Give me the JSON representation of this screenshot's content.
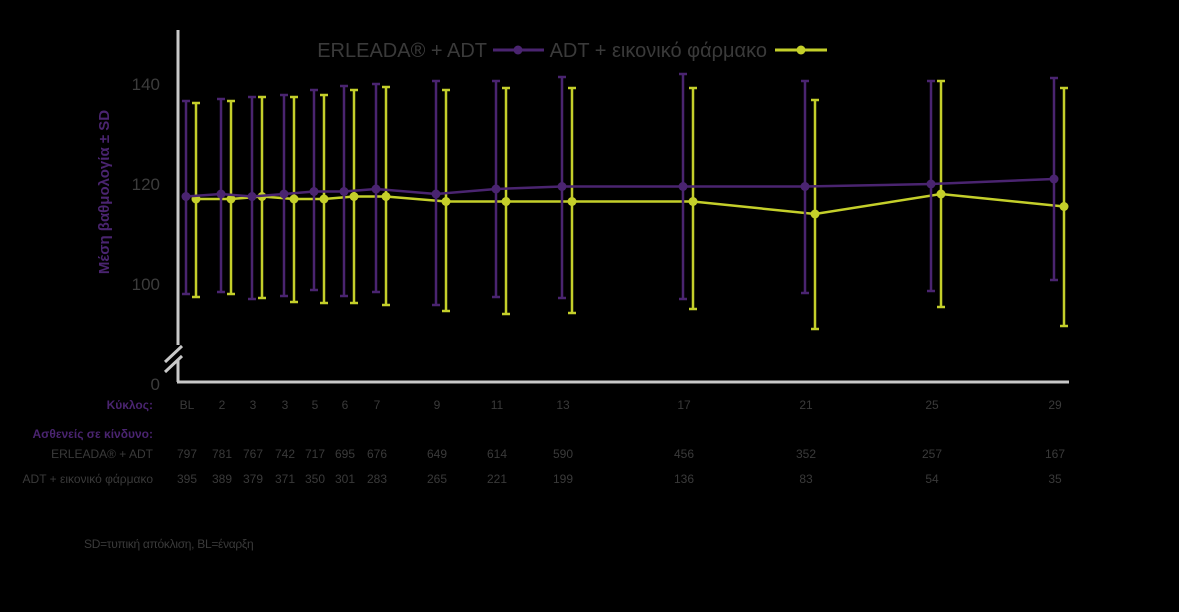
{
  "legend": {
    "series_a": "ERLEADA® + ADT",
    "series_b": "ADT + εικονικό φάρμακο"
  },
  "colors": {
    "series_a": "#4a2470",
    "series_b": "#c4cf2a",
    "axis": "#c8c8c8",
    "text": "#3a3a3a",
    "background": "#000000"
  },
  "axis": {
    "ylabel": "Μέση βαθμολογία ± SD",
    "yticks": [
      "0",
      "100",
      "120",
      "140"
    ]
  },
  "table": {
    "cycle_label": "Κύκλος:",
    "at_risk_label": "Ασθενείς σε κίνδυνο:",
    "row_a_label": "ERLEADA® + ADT",
    "row_b_label": "ADT + εικονικό φάρμακο",
    "cycles": [
      "BL",
      "2",
      "3",
      "3",
      "5",
      "6",
      "7",
      "9",
      "11",
      "13",
      "17",
      "21",
      "25",
      "29"
    ],
    "row_a": [
      "797",
      "781",
      "767",
      "742",
      "717",
      "695",
      "676",
      "649",
      "614",
      "590",
      "456",
      "352",
      "257",
      "167"
    ],
    "row_b": [
      "395",
      "389",
      "379",
      "371",
      "350",
      "301",
      "283",
      "265",
      "221",
      "199",
      "136",
      "83",
      "54",
      "35"
    ]
  },
  "footnote": "SD=τυπική απόκλιση, BL=έναρξη",
  "chart_data": {
    "type": "line",
    "title": "",
    "xlabel": "Κύκλος",
    "ylabel": "Μέση βαθμολογία ± SD",
    "ylim": [
      0,
      150
    ],
    "y_axis_break": true,
    "yticks": [
      0,
      100,
      120,
      140
    ],
    "grid": false,
    "legend_position": "top",
    "categories": [
      "BL",
      "2",
      "3",
      "3",
      "5",
      "6",
      "7",
      "9",
      "11",
      "13",
      "17",
      "21",
      "25",
      "29"
    ],
    "series": [
      {
        "name": "ERLEADA® + ADT",
        "color": "#4a2470",
        "values": [
          117.5,
          118,
          117.5,
          118,
          118.5,
          118.5,
          119,
          118,
          119,
          119.5,
          119.5,
          119.5,
          120,
          121
        ],
        "error_upper": [
          136.6,
          137,
          137.4,
          137.8,
          138.8,
          139.6,
          140,
          140.6,
          140.6,
          141.4,
          142,
          140.6,
          140.6,
          141.2
        ],
        "error_lower": [
          98,
          98.4,
          97,
          97.6,
          98.8,
          97.6,
          98.4,
          95.8,
          97.4,
          97.2,
          97,
          98.2,
          98.6,
          100.8
        ],
        "n_at_risk": [
          797,
          781,
          767,
          742,
          717,
          695,
          676,
          649,
          614,
          590,
          456,
          352,
          257,
          167
        ]
      },
      {
        "name": "ADT + εικονικό φάρμακο",
        "color": "#c4cf2a",
        "values": [
          117,
          117,
          117.5,
          117,
          117,
          117.5,
          117.5,
          116.5,
          116.5,
          116.5,
          116.5,
          114,
          118,
          115.5
        ],
        "error_upper": [
          136.2,
          136.6,
          137.4,
          137.4,
          137.8,
          138.8,
          139.4,
          138.8,
          139.2,
          139.2,
          139.2,
          136.8,
          140.6,
          139.2
        ],
        "error_lower": [
          97.4,
          98,
          97.2,
          96.4,
          96.2,
          96.2,
          95.8,
          94.6,
          94,
          94.2,
          95,
          91,
          95.4,
          91.6
        ],
        "n_at_risk": [
          395,
          389,
          379,
          371,
          350,
          301,
          283,
          265,
          221,
          199,
          136,
          83,
          54,
          35
        ]
      }
    ]
  }
}
